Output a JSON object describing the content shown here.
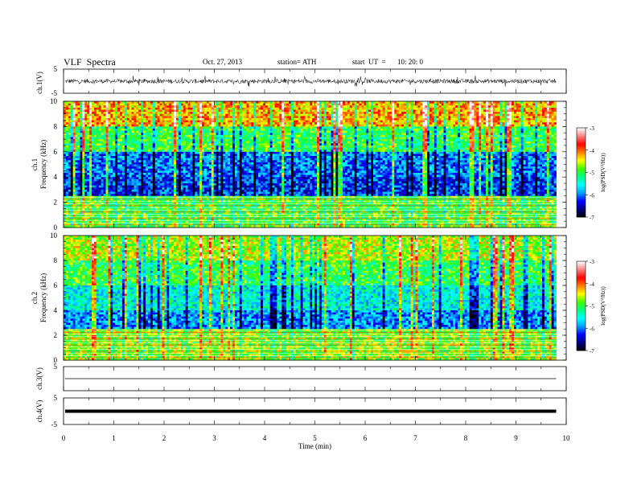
{
  "header": {
    "title": "VLF  Spectra",
    "date": "Oct. 27, 2013",
    "station": "station= ATH",
    "start_label": "start  UT  =",
    "start_time": "10: 20: 0"
  },
  "colors": {
    "colormap": [
      "#000000",
      "#000080",
      "#0000ff",
      "#00a0ff",
      "#00ffff",
      "#00ff80",
      "#40ff00",
      "#ffff00",
      "#ff8000",
      "#ff0000",
      "#ff8080",
      "#ffffff"
    ],
    "trace": "#000000"
  },
  "chart_data": [
    {
      "type": "line",
      "name": "ch1-waveform",
      "ylabel": "ch.1(V)",
      "ylim": [
        -5,
        5
      ],
      "yticks": [
        "5",
        "-5"
      ],
      "xlim": [
        0,
        10
      ],
      "amplitude_note": "noise about ±1 V with frequent spikes to ±2 V"
    },
    {
      "type": "heatmap",
      "name": "ch1-spectrogram",
      "ylabel": "ch.1\nFrequency (kHz)",
      "ylim": [
        0,
        10
      ],
      "yticks": [
        "0",
        "2",
        "4",
        "6",
        "8",
        "10"
      ],
      "xlim": [
        0,
        10
      ],
      "data_end_min": 9.8,
      "colorbar": {
        "label": "log(PSD(V²/Hz))",
        "range": [
          -7,
          -3
        ],
        "ticks": [
          "-3",
          "-4",
          "-5",
          "-6",
          "-7"
        ]
      },
      "bands": [
        {
          "kHz": [
            0,
            2.5
          ],
          "level": -4.9
        },
        {
          "kHz": [
            2.5,
            4
          ],
          "level": -6.2
        },
        {
          "kHz": [
            4,
            6
          ],
          "level": -6.0
        },
        {
          "kHz": [
            6,
            8
          ],
          "level": -5.0
        },
        {
          "kHz": [
            8,
            10
          ],
          "level": -4.2
        }
      ]
    },
    {
      "type": "heatmap",
      "name": "ch2-spectrogram",
      "ylabel": "ch.2\nFrequency (kHz)",
      "ylim": [
        0,
        10
      ],
      "yticks": [
        "0",
        "2",
        "4",
        "6",
        "8",
        "10"
      ],
      "xlim": [
        0,
        10
      ],
      "data_end_min": 9.8,
      "colorbar": {
        "label": "log(PSD(V²/Hz))",
        "range": [
          -7,
          -3
        ],
        "ticks": [
          "-3",
          "-4",
          "-5",
          "-6",
          "-7"
        ]
      },
      "bands": [
        {
          "kHz": [
            0,
            2.5
          ],
          "level": -4.7
        },
        {
          "kHz": [
            2.5,
            4
          ],
          "level": -5.9
        },
        {
          "kHz": [
            4,
            6
          ],
          "level": -5.5
        },
        {
          "kHz": [
            6,
            8
          ],
          "level": -5.0
        },
        {
          "kHz": [
            8,
            10
          ],
          "level": -4.6
        }
      ]
    },
    {
      "type": "line",
      "name": "ch3-waveform",
      "ylabel": "ch.3(V)",
      "ylim": [
        -5,
        5
      ],
      "yticks": [
        "5"
      ],
      "xlim": [
        0,
        10
      ],
      "level": 0
    },
    {
      "type": "line",
      "name": "ch4-waveform",
      "ylabel": "ch.4(V)",
      "ylim": [
        -5,
        5
      ],
      "yticks": [
        "5",
        "-5"
      ],
      "xlim": [
        0,
        10
      ],
      "level": 0
    }
  ],
  "xaxis": {
    "label": "Time  (min)",
    "ticks": [
      "0",
      "1",
      "2",
      "3",
      "4",
      "5",
      "6",
      "7",
      "8",
      "9",
      "10"
    ]
  }
}
